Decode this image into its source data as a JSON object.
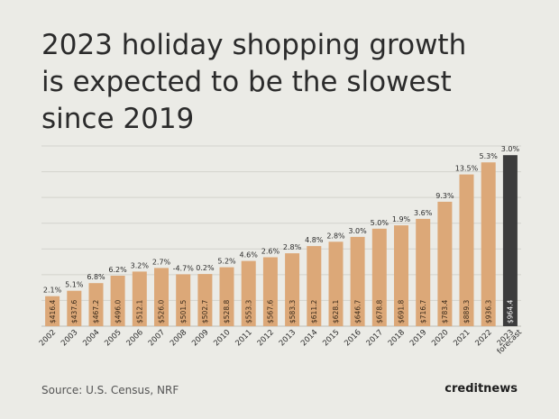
{
  "title_lines": [
    "2023 holiday shopping growth",
    "is expected to be the slowest",
    "since 2019"
  ],
  "source": "Source: U.S. Census, NRF",
  "brand": "creditnews",
  "colors": {
    "bar": "#dca878",
    "highlight": "#3c3c3c",
    "grid": "#d3d3cd",
    "text": "#2b2b2b"
  },
  "chart_data": {
    "type": "bar",
    "title": "2023 holiday shopping growth is expected to be the slowest since 2019",
    "xlabel": "",
    "ylabel": "",
    "grid": true,
    "ylim": [
      0,
      1000
    ],
    "categories": [
      "2002",
      "2003",
      "2004",
      "2005",
      "2006",
      "2007",
      "2008",
      "2009",
      "2010",
      "2011",
      "2012",
      "2013",
      "2014",
      "2015",
      "2016",
      "2017",
      "2018",
      "2019",
      "2020",
      "2021",
      "2022",
      "2023"
    ],
    "category_notes": {
      "2023": "forecast"
    },
    "values": [
      416.4,
      437.6,
      467.2,
      496.0,
      512.1,
      526.0,
      501.5,
      502.7,
      528.8,
      553.3,
      567.6,
      583.3,
      611.2,
      628.1,
      646.7,
      678.8,
      691.8,
      716.7,
      783.4,
      889.3,
      936.3,
      964.4
    ],
    "value_labels": [
      "$416.4",
      "$437.6",
      "$467.2",
      "$496.0",
      "$512.1",
      "$526.0",
      "$501.5",
      "$502.7",
      "$528.8",
      "$553.3",
      "$567.6",
      "$583.3",
      "$611.2",
      "$628.1",
      "$646.7",
      "$678.8",
      "$691.8",
      "$716.7",
      "$783.4",
      "$889.3",
      "$936.3",
      "$964.4"
    ],
    "growth_labels": [
      "2.1%",
      "5.1%",
      "6.8%",
      "6.2%",
      "3.2%",
      "2.7%",
      "-4.7%",
      "0.2%",
      "5.2%",
      "4.6%",
      "2.6%",
      "2.8%",
      "4.8%",
      "2.8%",
      "3.0%",
      "5.0%",
      "1.9%",
      "3.6%",
      "9.3%",
      "13.5%",
      "5.3%",
      "3.0%"
    ],
    "highlight_index": 21
  }
}
